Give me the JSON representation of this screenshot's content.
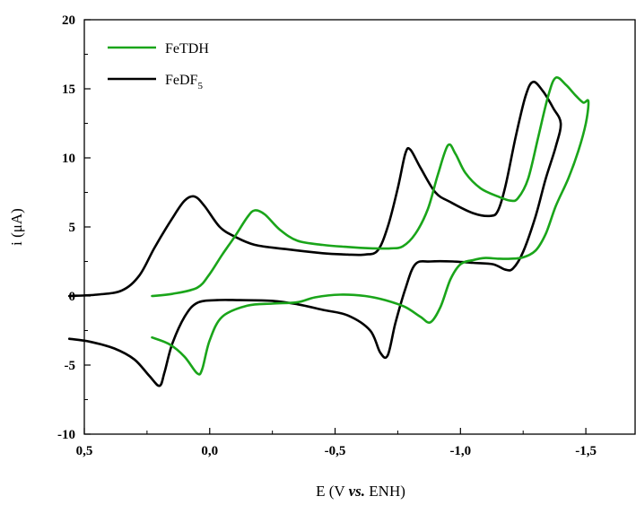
{
  "chart_data": {
    "type": "line",
    "title": "",
    "xlabel": {
      "pre": "E (V ",
      "italic": "vs.",
      "post": " ENH)"
    },
    "ylabel": "i (μA)",
    "xlim": [
      0.5,
      -1.7
    ],
    "ylim": [
      -10,
      20
    ],
    "x_reversed": true,
    "grid": false,
    "legend_position": "top-left",
    "xticks": [
      0.5,
      0.0,
      -0.5,
      -1.0,
      -1.5
    ],
    "xtick_labels": [
      "0,5",
      "0,0",
      "-0,5",
      "-1,0",
      "-1,5"
    ],
    "yticks": [
      -10,
      -5,
      0,
      5,
      10,
      15,
      20
    ],
    "ytick_labels": [
      "-10",
      "-5",
      "0",
      "5",
      "10",
      "15",
      "20"
    ],
    "series": [
      {
        "name": "FeTDH",
        "color": "#1aa51a",
        "points": [
          [
            0.23,
            0.0
          ],
          [
            0.15,
            0.15
          ],
          [
            0.05,
            0.6
          ],
          [
            0.0,
            1.6
          ],
          [
            -0.05,
            3.0
          ],
          [
            -0.1,
            4.3
          ],
          [
            -0.15,
            5.7
          ],
          [
            -0.18,
            6.2
          ],
          [
            -0.22,
            5.9
          ],
          [
            -0.28,
            4.8
          ],
          [
            -0.35,
            4.0
          ],
          [
            -0.45,
            3.7
          ],
          [
            -0.55,
            3.55
          ],
          [
            -0.65,
            3.45
          ],
          [
            -0.72,
            3.45
          ],
          [
            -0.77,
            3.6
          ],
          [
            -0.82,
            4.5
          ],
          [
            -0.87,
            6.3
          ],
          [
            -0.91,
            8.8
          ],
          [
            -0.95,
            10.9
          ],
          [
            -0.98,
            10.3
          ],
          [
            -1.02,
            8.9
          ],
          [
            -1.08,
            7.8
          ],
          [
            -1.15,
            7.2
          ],
          [
            -1.2,
            6.9
          ],
          [
            -1.23,
            7.1
          ],
          [
            -1.27,
            8.5
          ],
          [
            -1.31,
            11.5
          ],
          [
            -1.35,
            14.5
          ],
          [
            -1.38,
            15.8
          ],
          [
            -1.42,
            15.3
          ],
          [
            -1.46,
            14.5
          ],
          [
            -1.49,
            14.0
          ],
          [
            -1.51,
            14.1
          ],
          [
            -1.5,
            12.5
          ],
          [
            -1.47,
            10.5
          ],
          [
            -1.43,
            8.5
          ],
          [
            -1.38,
            6.5
          ],
          [
            -1.34,
            4.5
          ],
          [
            -1.3,
            3.3
          ],
          [
            -1.25,
            2.8
          ],
          [
            -1.2,
            2.7
          ],
          [
            -1.15,
            2.7
          ],
          [
            -1.1,
            2.75
          ],
          [
            -1.05,
            2.6
          ],
          [
            -1.0,
            2.3
          ],
          [
            -0.96,
            1.2
          ],
          [
            -0.92,
            -0.8
          ],
          [
            -0.88,
            -1.9
          ],
          [
            -0.84,
            -1.5
          ],
          [
            -0.78,
            -0.8
          ],
          [
            -0.7,
            -0.3
          ],
          [
            -0.62,
            0.0
          ],
          [
            -0.52,
            0.1
          ],
          [
            -0.42,
            -0.1
          ],
          [
            -0.35,
            -0.45
          ],
          [
            -0.25,
            -0.55
          ],
          [
            -0.15,
            -0.7
          ],
          [
            -0.05,
            -1.5
          ],
          [
            0.0,
            -3.2
          ],
          [
            0.03,
            -5.3
          ],
          [
            0.05,
            -5.6
          ],
          [
            0.1,
            -4.4
          ],
          [
            0.16,
            -3.5
          ],
          [
            0.23,
            -3.0
          ]
        ]
      },
      {
        "name": "FeDF",
        "name_subscript": "5",
        "color": "#000000",
        "points": [
          [
            0.56,
            0.0
          ],
          [
            0.45,
            0.1
          ],
          [
            0.35,
            0.4
          ],
          [
            0.28,
            1.5
          ],
          [
            0.22,
            3.5
          ],
          [
            0.15,
            5.6
          ],
          [
            0.1,
            6.9
          ],
          [
            0.06,
            7.2
          ],
          [
            0.02,
            6.5
          ],
          [
            -0.04,
            5.0
          ],
          [
            -0.1,
            4.3
          ],
          [
            -0.18,
            3.7
          ],
          [
            -0.3,
            3.4
          ],
          [
            -0.45,
            3.1
          ],
          [
            -0.55,
            3.0
          ],
          [
            -0.62,
            3.0
          ],
          [
            -0.67,
            3.3
          ],
          [
            -0.71,
            5.0
          ],
          [
            -0.75,
            7.8
          ],
          [
            -0.78,
            10.3
          ],
          [
            -0.8,
            10.6
          ],
          [
            -0.84,
            9.3
          ],
          [
            -0.9,
            7.5
          ],
          [
            -0.96,
            6.8
          ],
          [
            -1.05,
            6.0
          ],
          [
            -1.12,
            5.8
          ],
          [
            -1.15,
            6.2
          ],
          [
            -1.18,
            8.0
          ],
          [
            -1.22,
            11.5
          ],
          [
            -1.26,
            14.5
          ],
          [
            -1.29,
            15.5
          ],
          [
            -1.33,
            14.8
          ],
          [
            -1.37,
            13.6
          ],
          [
            -1.4,
            12.5
          ],
          [
            -1.38,
            10.8
          ],
          [
            -1.34,
            8.5
          ],
          [
            -1.3,
            5.8
          ],
          [
            -1.25,
            3.2
          ],
          [
            -1.21,
            2.0
          ],
          [
            -1.18,
            1.9
          ],
          [
            -1.13,
            2.3
          ],
          [
            -1.05,
            2.4
          ],
          [
            -0.97,
            2.5
          ],
          [
            -0.88,
            2.5
          ],
          [
            -0.82,
            2.3
          ],
          [
            -0.78,
            0.5
          ],
          [
            -0.74,
            -2.0
          ],
          [
            -0.71,
            -4.3
          ],
          [
            -0.68,
            -4.1
          ],
          [
            -0.64,
            -2.5
          ],
          [
            -0.55,
            -1.4
          ],
          [
            -0.45,
            -1.0
          ],
          [
            -0.35,
            -0.6
          ],
          [
            -0.25,
            -0.35
          ],
          [
            -0.12,
            -0.3
          ],
          [
            -0.03,
            -0.3
          ],
          [
            0.05,
            -0.5
          ],
          [
            0.1,
            -1.5
          ],
          [
            0.15,
            -3.5
          ],
          [
            0.18,
            -5.5
          ],
          [
            0.2,
            -6.5
          ],
          [
            0.24,
            -5.8
          ],
          [
            0.3,
            -4.6
          ],
          [
            0.38,
            -3.8
          ],
          [
            0.48,
            -3.3
          ],
          [
            0.56,
            -3.1
          ]
        ]
      }
    ]
  }
}
